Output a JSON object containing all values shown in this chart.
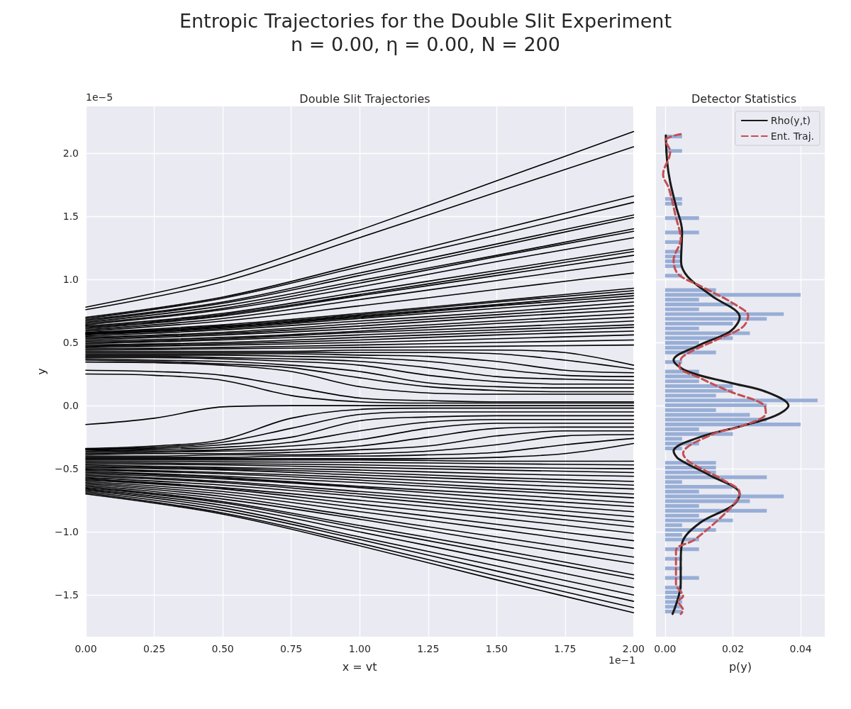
{
  "chart_data": [
    {
      "type": "other",
      "title": "Entropic Trajectories for the Double Slit Experiment",
      "subtitle": "n =  0.00, η =  0.00, N = 200"
    },
    {
      "type": "line",
      "title": "Double Slit Trajectories",
      "xlabel": "x = vt",
      "ylabel": "y",
      "annotations": [
        "1e−5",
        "1e−1"
      ],
      "grid": true,
      "xlim": [
        0,
        2
      ],
      "xticks": [
        {
          "value": 0,
          "label": "0.00"
        },
        {
          "value": 0.25,
          "label": "0.25"
        },
        {
          "value": 0.5,
          "label": "0.50"
        },
        {
          "value": 0.75,
          "label": "0.75"
        },
        {
          "value": 1,
          "label": "1.00"
        },
        {
          "value": 1.25,
          "label": "1.25"
        },
        {
          "value": 1.5,
          "label": "1.50"
        },
        {
          "value": 1.75,
          "label": "1.75"
        },
        {
          "value": 2,
          "label": "2.00"
        }
      ],
      "ylim": [
        -1.83,
        2.37
      ],
      "yticks": [
        {
          "value": -1.5,
          "label": "−1.5"
        },
        {
          "value": -1,
          "label": "−1.0"
        },
        {
          "value": -0.5,
          "label": "−0.5"
        },
        {
          "value": 0,
          "label": "0.0"
        },
        {
          "value": 0.5,
          "label": "0.5"
        },
        {
          "value": 1,
          "label": "1.0"
        },
        {
          "value": 1.5,
          "label": "1.5"
        },
        {
          "value": 2,
          "label": "2.0"
        }
      ],
      "x": [
        0,
        0.5,
        1,
        1.5,
        2
      ],
      "series": [
        {
          "color": "#000000",
          "values": [
            0.78,
            1.02,
            1.39,
            1.78,
            2.17
          ]
        },
        {
          "color": "#000000",
          "values": [
            0.76,
            0.98,
            1.33,
            1.69,
            2.05
          ]
        },
        {
          "color": "#000000",
          "values": [
            0.7,
            0.86,
            1.12,
            1.39,
            1.66
          ]
        },
        {
          "color": "#000000",
          "values": [
            0.69,
            0.85,
            1.1,
            1.35,
            1.61
          ]
        },
        {
          "color": "#000000",
          "values": [
            0.68,
            0.82,
            1.05,
            1.28,
            1.51
          ]
        },
        {
          "color": "#000000",
          "values": [
            0.67,
            0.81,
            1.03,
            1.26,
            1.49
          ]
        },
        {
          "color": "#000000",
          "values": [
            0.66,
            0.79,
            0.99,
            1.19,
            1.4
          ]
        },
        {
          "color": "#000000",
          "values": [
            0.65,
            0.77,
            0.97,
            1.18,
            1.38
          ]
        },
        {
          "color": "#000000",
          "values": [
            0.64,
            0.76,
            0.94,
            1.14,
            1.33
          ]
        },
        {
          "color": "#000000",
          "values": [
            0.63,
            0.73,
            0.9,
            1.07,
            1.24
          ]
        },
        {
          "color": "#000000",
          "values": [
            0.62,
            0.72,
            0.88,
            1.05,
            1.22
          ]
        },
        {
          "color": "#000000",
          "values": [
            0.61,
            0.71,
            0.87,
            1.03,
            1.19
          ]
        },
        {
          "color": "#000000",
          "values": [
            0.6,
            0.69,
            0.84,
            0.99,
            1.14
          ]
        },
        {
          "color": "#000000",
          "values": [
            0.59,
            0.67,
            0.79,
            0.92,
            1.05
          ]
        },
        {
          "color": "#000000",
          "values": [
            0.58,
            0.64,
            0.73,
            0.83,
            0.93
          ]
        },
        {
          "color": "#000000",
          "values": [
            0.575,
            0.63,
            0.72,
            0.82,
            0.91
          ]
        },
        {
          "color": "#000000",
          "values": [
            0.57,
            0.62,
            0.71,
            0.8,
            0.89
          ]
        },
        {
          "color": "#000000",
          "values": [
            0.565,
            0.62,
            0.7,
            0.79,
            0.87
          ]
        },
        {
          "color": "#000000",
          "values": [
            0.56,
            0.61,
            0.69,
            0.77,
            0.85
          ]
        },
        {
          "color": "#000000",
          "values": [
            0.55,
            0.6,
            0.67,
            0.74,
            0.82
          ]
        },
        {
          "color": "#000000",
          "values": [
            0.54,
            0.58,
            0.65,
            0.72,
            0.79
          ]
        },
        {
          "color": "#000000",
          "values": [
            0.53,
            0.57,
            0.63,
            0.7,
            0.76
          ]
        },
        {
          "color": "#000000",
          "values": [
            0.52,
            0.56,
            0.61,
            0.67,
            0.73
          ]
        },
        {
          "color": "#000000",
          "values": [
            0.51,
            0.54,
            0.59,
            0.65,
            0.7
          ]
        },
        {
          "color": "#000000",
          "values": [
            0.5,
            0.53,
            0.58,
            0.62,
            0.67
          ]
        },
        {
          "color": "#000000",
          "values": [
            0.49,
            0.52,
            0.56,
            0.6,
            0.64
          ]
        },
        {
          "color": "#000000",
          "values": [
            0.48,
            0.5,
            0.54,
            0.58,
            0.62
          ]
        },
        {
          "color": "#000000",
          "values": [
            0.47,
            0.49,
            0.52,
            0.56,
            0.59
          ]
        },
        {
          "color": "#000000",
          "values": [
            0.46,
            0.48,
            0.5,
            0.53,
            0.56
          ]
        },
        {
          "color": "#000000",
          "values": [
            0.45,
            0.46,
            0.48,
            0.5,
            0.52
          ]
        },
        {
          "color": "#000000",
          "values": [
            0.44,
            0.45,
            0.46,
            0.47,
            0.48
          ]
        },
        {
          "color": "#000000",
          "x": [
            0,
            0.25,
            0.5,
            0.75,
            1,
            1.25,
            1.5,
            1.75,
            2
          ],
          "values": [
            0.28,
            0.27,
            0.24,
            0.15,
            0.06,
            0.04,
            0.03,
            0.03,
            0.03
          ]
        },
        {
          "color": "#000000",
          "x": [
            0,
            0.25,
            0.5,
            0.75,
            1,
            1.25,
            1.5,
            1.75,
            2
          ],
          "values": [
            0.25,
            0.24,
            0.2,
            0.08,
            0.03,
            0.02,
            0.02,
            0.02,
            0.02
          ]
        },
        {
          "color": "#000000",
          "x": [
            0,
            0.25,
            0.5,
            0.75,
            1,
            1.25,
            1.5,
            1.75,
            2
          ],
          "values": [
            0.345,
            0.34,
            0.32,
            0.27,
            0.15,
            0.1,
            0.09,
            0.09,
            0.09
          ]
        },
        {
          "color": "#000000",
          "x": [
            0,
            0.25,
            0.5,
            0.75,
            1,
            1.25,
            1.5,
            1.75,
            2
          ],
          "values": [
            0.36,
            0.35,
            0.33,
            0.3,
            0.22,
            0.15,
            0.12,
            0.11,
            0.11
          ]
        },
        {
          "color": "#000000",
          "x": [
            0,
            0.25,
            0.5,
            0.75,
            1,
            1.25,
            1.5,
            1.75,
            2
          ],
          "values": [
            0.37,
            0.36,
            0.35,
            0.32,
            0.27,
            0.18,
            0.15,
            0.14,
            0.14
          ]
        },
        {
          "color": "#000000",
          "x": [
            0,
            0.25,
            0.5,
            0.75,
            1,
            1.25,
            1.5,
            1.75,
            2
          ],
          "values": [
            0.38,
            0.38,
            0.37,
            0.35,
            0.32,
            0.24,
            0.19,
            0.17,
            0.17
          ]
        },
        {
          "color": "#000000",
          "x": [
            0,
            0.25,
            0.5,
            0.75,
            1,
            1.25,
            1.5,
            1.75,
            2
          ],
          "values": [
            0.39,
            0.39,
            0.38,
            0.37,
            0.35,
            0.3,
            0.23,
            0.21,
            0.2
          ]
        },
        {
          "color": "#000000",
          "x": [
            0,
            0.25,
            0.5,
            0.75,
            1,
            1.25,
            1.5,
            1.75,
            2
          ],
          "values": [
            0.4,
            0.4,
            0.4,
            0.39,
            0.38,
            0.35,
            0.29,
            0.24,
            0.23
          ]
        },
        {
          "color": "#000000",
          "x": [
            0,
            0.25,
            0.5,
            0.75,
            1,
            1.25,
            1.5,
            1.75,
            2
          ],
          "values": [
            0.41,
            0.41,
            0.41,
            0.41,
            0.4,
            0.39,
            0.35,
            0.28,
            0.26
          ]
        },
        {
          "color": "#000000",
          "x": [
            0,
            0.25,
            0.5,
            0.75,
            1,
            1.25,
            1.5,
            1.75,
            2
          ],
          "values": [
            0.42,
            0.42,
            0.42,
            0.42,
            0.42,
            0.42,
            0.41,
            0.36,
            0.29
          ]
        },
        {
          "color": "#000000",
          "x": [
            0,
            0.25,
            0.5,
            0.75,
            1,
            1.25,
            1.5,
            1.75,
            2
          ],
          "values": [
            0.43,
            0.43,
            0.43,
            0.43,
            0.44,
            0.44,
            0.44,
            0.42,
            0.32
          ]
        },
        {
          "color": "#000000",
          "x": [
            0,
            0.25,
            0.5,
            0.75,
            1,
            1.25,
            1.5,
            1.75,
            2
          ],
          "values": [
            -0.15,
            -0.1,
            -0.01,
            0,
            0,
            0,
            0,
            0,
            0
          ]
        },
        {
          "color": "#000000",
          "x": [
            0,
            0.25,
            0.5,
            0.75,
            1,
            1.25,
            1.5,
            1.75,
            2
          ],
          "values": [
            -0.34,
            -0.32,
            -0.27,
            -0.1,
            -0.03,
            -0.02,
            -0.02,
            -0.02,
            -0.02
          ]
        },
        {
          "color": "#000000",
          "x": [
            0,
            0.25,
            0.5,
            0.75,
            1,
            1.25,
            1.5,
            1.75,
            2
          ],
          "values": [
            -0.345,
            -0.33,
            -0.29,
            -0.18,
            -0.07,
            -0.05,
            -0.05,
            -0.05,
            -0.05
          ]
        },
        {
          "color": "#000000",
          "x": [
            0,
            0.25,
            0.5,
            0.75,
            1,
            1.25,
            1.5,
            1.75,
            2
          ],
          "values": [
            -0.35,
            -0.34,
            -0.31,
            -0.25,
            -0.12,
            -0.09,
            -0.08,
            -0.08,
            -0.08
          ]
        },
        {
          "color": "#000000",
          "x": [
            0,
            0.25,
            0.5,
            0.75,
            1,
            1.25,
            1.5,
            1.75,
            2
          ],
          "values": [
            -0.36,
            -0.35,
            -0.33,
            -0.29,
            -0.2,
            -0.13,
            -0.11,
            -0.11,
            -0.11
          ]
        },
        {
          "color": "#000000",
          "x": [
            0,
            0.25,
            0.5,
            0.75,
            1,
            1.25,
            1.5,
            1.75,
            2
          ],
          "values": [
            -0.37,
            -0.36,
            -0.35,
            -0.32,
            -0.27,
            -0.18,
            -0.14,
            -0.14,
            -0.14
          ]
        },
        {
          "color": "#000000",
          "x": [
            0,
            0.25,
            0.5,
            0.75,
            1,
            1.25,
            1.5,
            1.75,
            2
          ],
          "values": [
            -0.38,
            -0.37,
            -0.36,
            -0.35,
            -0.32,
            -0.25,
            -0.18,
            -0.17,
            -0.17
          ]
        },
        {
          "color": "#000000",
          "x": [
            0,
            0.25,
            0.5,
            0.75,
            1,
            1.25,
            1.5,
            1.75,
            2
          ],
          "values": [
            -0.39,
            -0.38,
            -0.38,
            -0.37,
            -0.35,
            -0.32,
            -0.24,
            -0.2,
            -0.2
          ]
        },
        {
          "color": "#000000",
          "x": [
            0,
            0.25,
            0.5,
            0.75,
            1,
            1.25,
            1.5,
            1.75,
            2
          ],
          "values": [
            -0.4,
            -0.4,
            -0.39,
            -0.39,
            -0.38,
            -0.36,
            -0.31,
            -0.24,
            -0.23
          ]
        },
        {
          "color": "#000000",
          "x": [
            0,
            0.25,
            0.5,
            0.75,
            1,
            1.25,
            1.5,
            1.75,
            2
          ],
          "values": [
            -0.41,
            -0.41,
            -0.41,
            -0.4,
            -0.4,
            -0.39,
            -0.37,
            -0.31,
            -0.26
          ]
        },
        {
          "color": "#000000",
          "x": [
            0,
            0.25,
            0.5,
            0.75,
            1,
            1.25,
            1.5,
            1.75,
            2
          ],
          "values": [
            -0.42,
            -0.42,
            -0.42,
            -0.42,
            -0.42,
            -0.42,
            -0.41,
            -0.38,
            -0.3
          ]
        },
        {
          "color": "#000000",
          "values": [
            -0.43,
            -0.43,
            -0.43,
            -0.44,
            -0.44
          ]
        },
        {
          "color": "#000000",
          "values": [
            -0.44,
            -0.445,
            -0.45,
            -0.46,
            -0.47
          ]
        },
        {
          "color": "#000000",
          "values": [
            -0.45,
            -0.46,
            -0.47,
            -0.49,
            -0.5
          ]
        },
        {
          "color": "#000000",
          "values": [
            -0.46,
            -0.47,
            -0.49,
            -0.51,
            -0.53
          ]
        },
        {
          "color": "#000000",
          "values": [
            -0.47,
            -0.49,
            -0.51,
            -0.54,
            -0.56
          ]
        },
        {
          "color": "#000000",
          "values": [
            -0.48,
            -0.5,
            -0.53,
            -0.57,
            -0.6
          ]
        },
        {
          "color": "#000000",
          "values": [
            -0.49,
            -0.51,
            -0.55,
            -0.59,
            -0.63
          ]
        },
        {
          "color": "#000000",
          "values": [
            -0.5,
            -0.53,
            -0.57,
            -0.62,
            -0.66
          ]
        },
        {
          "color": "#000000",
          "values": [
            -0.51,
            -0.54,
            -0.59,
            -0.65,
            -0.7
          ]
        },
        {
          "color": "#000000",
          "values": [
            -0.52,
            -0.56,
            -0.61,
            -0.67,
            -0.73
          ]
        },
        {
          "color": "#000000",
          "values": [
            -0.53,
            -0.57,
            -0.64,
            -0.7,
            -0.77
          ]
        },
        {
          "color": "#000000",
          "values": [
            -0.54,
            -0.58,
            -0.65,
            -0.73,
            -0.8
          ]
        },
        {
          "color": "#000000",
          "values": [
            -0.55,
            -0.6,
            -0.68,
            -0.76,
            -0.84
          ]
        },
        {
          "color": "#000000",
          "values": [
            -0.56,
            -0.61,
            -0.7,
            -0.79,
            -0.88
          ]
        },
        {
          "color": "#000000",
          "values": [
            -0.57,
            -0.63,
            -0.72,
            -0.82,
            -0.92
          ]
        },
        {
          "color": "#000000",
          "values": [
            -0.58,
            -0.65,
            -0.75,
            -0.85,
            -0.96
          ]
        },
        {
          "color": "#000000",
          "values": [
            -0.59,
            -0.66,
            -0.78,
            -0.89,
            -1.01
          ]
        },
        {
          "color": "#000000",
          "values": [
            -0.6,
            -0.68,
            -0.81,
            -0.94,
            -1.07
          ]
        },
        {
          "color": "#000000",
          "values": [
            -0.61,
            -0.7,
            -0.84,
            -0.98,
            -1.13
          ]
        },
        {
          "color": "#000000",
          "values": [
            -0.62,
            -0.72,
            -0.88,
            -1.04,
            -1.2
          ]
        },
        {
          "color": "#000000",
          "values": [
            -0.63,
            -0.74,
            -0.9,
            -1.08,
            -1.25
          ]
        },
        {
          "color": "#000000",
          "values": [
            -0.64,
            -0.76,
            -0.95,
            -1.14,
            -1.34
          ]
        },
        {
          "color": "#000000",
          "values": [
            -0.65,
            -0.77,
            -0.97,
            -1.17,
            -1.37
          ]
        },
        {
          "color": "#000000",
          "values": [
            -0.66,
            -0.79,
            -1.0,
            -1.22,
            -1.44
          ]
        },
        {
          "color": "#000000",
          "values": [
            -0.67,
            -0.81,
            -1.04,
            -1.27,
            -1.5
          ]
        },
        {
          "color": "#000000",
          "values": [
            -0.68,
            -0.83,
            -1.06,
            -1.31,
            -1.55
          ]
        },
        {
          "color": "#000000",
          "values": [
            -0.69,
            -0.85,
            -1.09,
            -1.35,
            -1.6
          ]
        },
        {
          "color": "#000000",
          "values": [
            -0.7,
            -0.86,
            -1.11,
            -1.38,
            -1.64
          ]
        }
      ]
    },
    {
      "type": "histogram",
      "orientation": "horizontal",
      "title": "Detector Statistics",
      "xlabel": "p(y)",
      "grid": true,
      "legend": "top right",
      "tick_labels": "x",
      "color": "#98aed6",
      "xlim": [
        -0.0027,
        0.0471
      ],
      "xticks": [
        {
          "value": 0,
          "label": "0.00"
        },
        {
          "value": 0.02,
          "label": "0.02"
        },
        {
          "value": 0.04,
          "label": "0.04"
        }
      ],
      "ylim": [
        -1.83,
        2.37
      ],
      "yticks": [
        {
          "value": -1.5,
          "label": null
        },
        {
          "value": -1,
          "label": null
        },
        {
          "value": -0.5,
          "label": null
        },
        {
          "value": 0,
          "label": null
        },
        {
          "value": 0.5,
          "label": null
        },
        {
          "value": 1,
          "label": null
        },
        {
          "value": 1.5,
          "label": null
        },
        {
          "value": 2,
          "label": null
        }
      ],
      "bins": [
        -1.65,
        -1.612,
        -1.574,
        -1.536,
        -1.498,
        -1.46,
        -1.422,
        -1.384,
        -1.346,
        -1.308,
        -1.27,
        -1.232,
        -1.194,
        -1.156,
        -1.118,
        -1.08,
        -1.042,
        -1.004,
        -0.966,
        -0.928,
        -0.89,
        -0.852,
        -0.814,
        -0.776,
        -0.738,
        -0.7,
        -0.662,
        -0.624,
        -0.586,
        -0.548,
        -0.51,
        -0.472,
        -0.434,
        -0.396,
        -0.358,
        -0.32,
        -0.282,
        -0.244,
        -0.206,
        -0.168,
        -0.13,
        -0.092,
        -0.054,
        -0.016,
        0.022,
        0.06,
        0.098,
        0.136,
        0.174,
        0.212,
        0.25,
        0.288,
        0.326,
        0.364,
        0.402,
        0.44,
        0.478,
        0.516,
        0.554,
        0.592,
        0.63,
        0.668,
        0.706,
        0.744,
        0.782,
        0.82,
        0.858,
        0.896,
        0.934,
        0.972,
        1.01,
        1.048,
        1.086,
        1.124,
        1.162,
        1.2,
        1.238,
        1.276,
        1.314,
        1.352,
        1.39,
        1.428,
        1.466,
        1.504,
        1.542,
        1.58,
        1.618,
        1.656,
        1.694,
        1.732,
        1.77,
        1.808,
        1.846,
        1.884,
        1.922,
        1.96,
        1.998,
        2.036,
        2.074,
        2.112,
        2.15
      ],
      "values": [
        0.005,
        0.005,
        0.005,
        0.005,
        0.005,
        0.005,
        0,
        0.01,
        0,
        0.005,
        0,
        0.005,
        0,
        0.01,
        0,
        0.01,
        0.005,
        0.015,
        0.005,
        0.02,
        0.01,
        0.03,
        0.01,
        0.025,
        0.035,
        0.01,
        0.02,
        0.005,
        0.03,
        0.015,
        0.015,
        0.015,
        0,
        0,
        0.005,
        0.01,
        0.005,
        0.02,
        0.01,
        0.04,
        0.03,
        0.025,
        0.015,
        0.03,
        0.045,
        0.015,
        0.02,
        0.02,
        0.01,
        0.01,
        0.01,
        0,
        0.005,
        0,
        0.015,
        0.01,
        0.01,
        0.02,
        0.025,
        0.01,
        0.02,
        0.03,
        0.035,
        0.01,
        0.02,
        0.01,
        0.04,
        0.015,
        0,
        0,
        0.005,
        0,
        0.005,
        0.005,
        0.005,
        0.005,
        0,
        0.005,
        0,
        0.01,
        0,
        0,
        0.01,
        0,
        0,
        0.005,
        0.005,
        0,
        0,
        0,
        0,
        0,
        0,
        0,
        0,
        0,
        0.005,
        0,
        0,
        0.005
      ],
      "series": [
        {
          "type": "line",
          "name": "Rho(y,t)",
          "color": "#1a1a1a",
          "line_style": "solid",
          "x": [
            2.14,
            1.93,
            1.77,
            1.58,
            1.38,
            1.14,
            1.02,
            0.87,
            0.7,
            0.59,
            0.48,
            0.36,
            0.27,
            0.18,
            0.11,
            0.0,
            -0.08,
            -0.16,
            -0.25,
            -0.36,
            -0.42,
            -0.55,
            -0.7,
            -0.79,
            -0.93,
            -1.09,
            -1.24,
            -1.41,
            -1.65
          ],
          "values": [
            0.0002,
            0.0006,
            0.0015,
            0.0032,
            0.005,
            0.0047,
            0.0067,
            0.0137,
            0.022,
            0.0193,
            0.0102,
            0.0025,
            0.0067,
            0.0193,
            0.0297,
            0.0364,
            0.0325,
            0.0228,
            0.0102,
            0.0025,
            0.0039,
            0.013,
            0.022,
            0.02,
            0.0102,
            0.005,
            0.0046,
            0.0046,
            0.0022
          ]
        },
        {
          "type": "line",
          "name": "Ent. Traj.",
          "color": "#c44e52",
          "line_style": "dashed",
          "x": [
            2.15,
            2.1,
            2.01,
            1.83,
            1.72,
            1.49,
            1.32,
            1.15,
            1.04,
            0.95,
            0.8,
            0.71,
            0.62,
            0.52,
            0.39,
            0.31,
            0.22,
            0.11,
            0.01,
            -0.06,
            -0.16,
            -0.23,
            -0.38,
            -0.45,
            -0.59,
            -0.69,
            -0.81,
            -1.06,
            -1.15,
            -1.41,
            -1.51,
            -1.55,
            -1.62,
            -1.65
          ],
          "values": [
            0.0046,
            0.0001,
            0.0015,
            -0.0006,
            0.0011,
            0.0032,
            0.0046,
            0.0025,
            0.0039,
            0.0102,
            0.0207,
            0.0245,
            0.0228,
            0.0151,
            0.0053,
            0.0042,
            0.0102,
            0.0193,
            0.029,
            0.0297,
            0.0228,
            0.0137,
            0.0053,
            0.0074,
            0.0172,
            0.022,
            0.0193,
            0.0088,
            0.0032,
            0.0032,
            0.0053,
            0.0039,
            0.0053,
            0.0046
          ]
        }
      ]
    }
  ]
}
